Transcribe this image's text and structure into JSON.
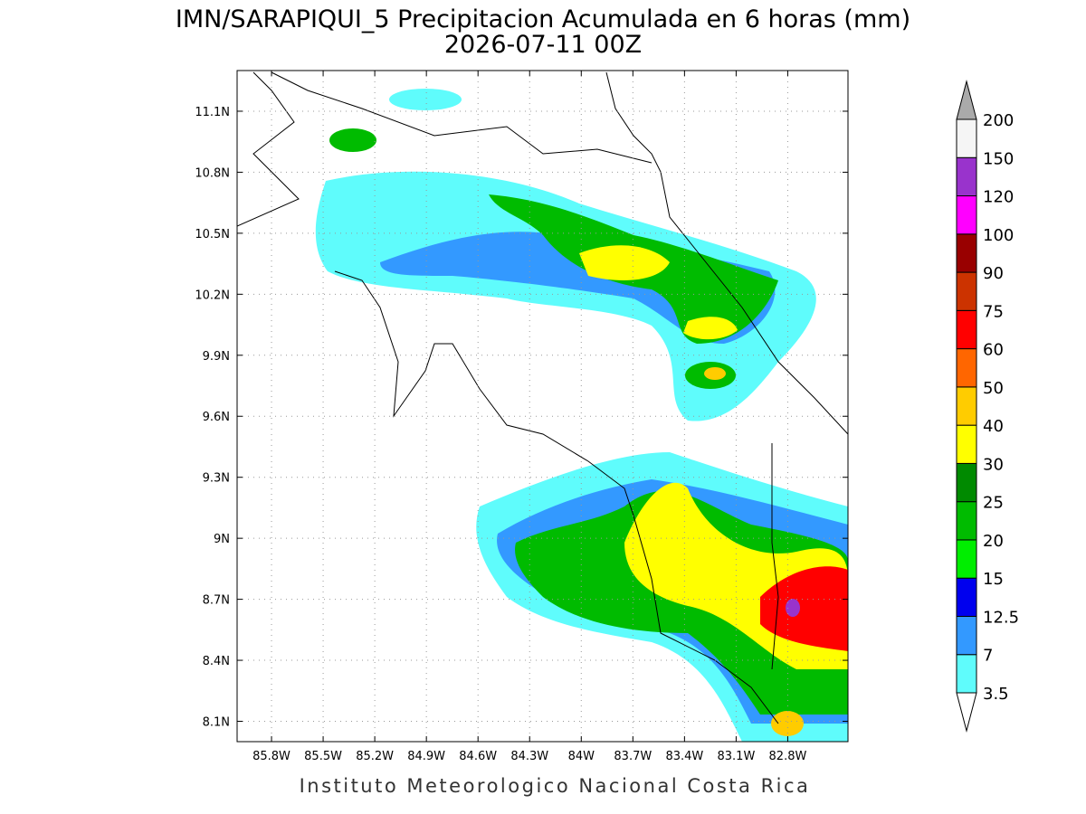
{
  "title": "IMN/SARAPIQUI_5 Precipitacion Acumulada en 6 horas (mm)",
  "subtitle": "2026-07-11 00Z",
  "footer": "Instituto Meteorologico Nacional Costa Rica",
  "map": {
    "latlim": [
      8.0,
      11.3
    ],
    "lonlim": [
      -86.0,
      -82.45
    ],
    "grid": true,
    "latticks": [
      {
        "value": 11.1,
        "label": "11.1N"
      },
      {
        "value": 10.8,
        "label": "10.8N"
      },
      {
        "value": 10.5,
        "label": "10.5N"
      },
      {
        "value": 10.2,
        "label": "10.2N"
      },
      {
        "value": 9.9,
        "label": "9.9N"
      },
      {
        "value": 9.6,
        "label": "9.6N"
      },
      {
        "value": 9.3,
        "label": "9.3N"
      },
      {
        "value": 9.0,
        "label": "9N"
      },
      {
        "value": 8.7,
        "label": "8.7N"
      },
      {
        "value": 8.4,
        "label": "8.4N"
      },
      {
        "value": 8.1,
        "label": "8.1N"
      }
    ],
    "lonticks": [
      {
        "value": -85.8,
        "label": "85.8W"
      },
      {
        "value": -85.5,
        "label": "85.5W"
      },
      {
        "value": -85.2,
        "label": "85.2W"
      },
      {
        "value": -84.9,
        "label": "84.9W"
      },
      {
        "value": -84.6,
        "label": "84.6W"
      },
      {
        "value": -84.3,
        "label": "84.3W"
      },
      {
        "value": -84.0,
        "label": "84W"
      },
      {
        "value": -83.7,
        "label": "83.7W"
      },
      {
        "value": -83.4,
        "label": "83.4W"
      },
      {
        "value": -83.1,
        "label": "83.1W"
      },
      {
        "value": -82.8,
        "label": "82.8W"
      }
    ]
  },
  "colorbar": {
    "levels": [
      3.5,
      7,
      12.5,
      15,
      20,
      25,
      30,
      40,
      50,
      60,
      75,
      90,
      100,
      120,
      150,
      200
    ],
    "colors": [
      "#5ffcfc",
      "#3399ff",
      "#0000ee",
      "#00ee00",
      "#00bb00",
      "#008a00",
      "#ffff00",
      "#ffcc00",
      "#ff6600",
      "#ff0000",
      "#cc3300",
      "#990000",
      "#ff00ff",
      "#9933cc",
      "#f5f5f5"
    ],
    "over_color": "#aaaaaa",
    "under_color": "#ffffff"
  }
}
